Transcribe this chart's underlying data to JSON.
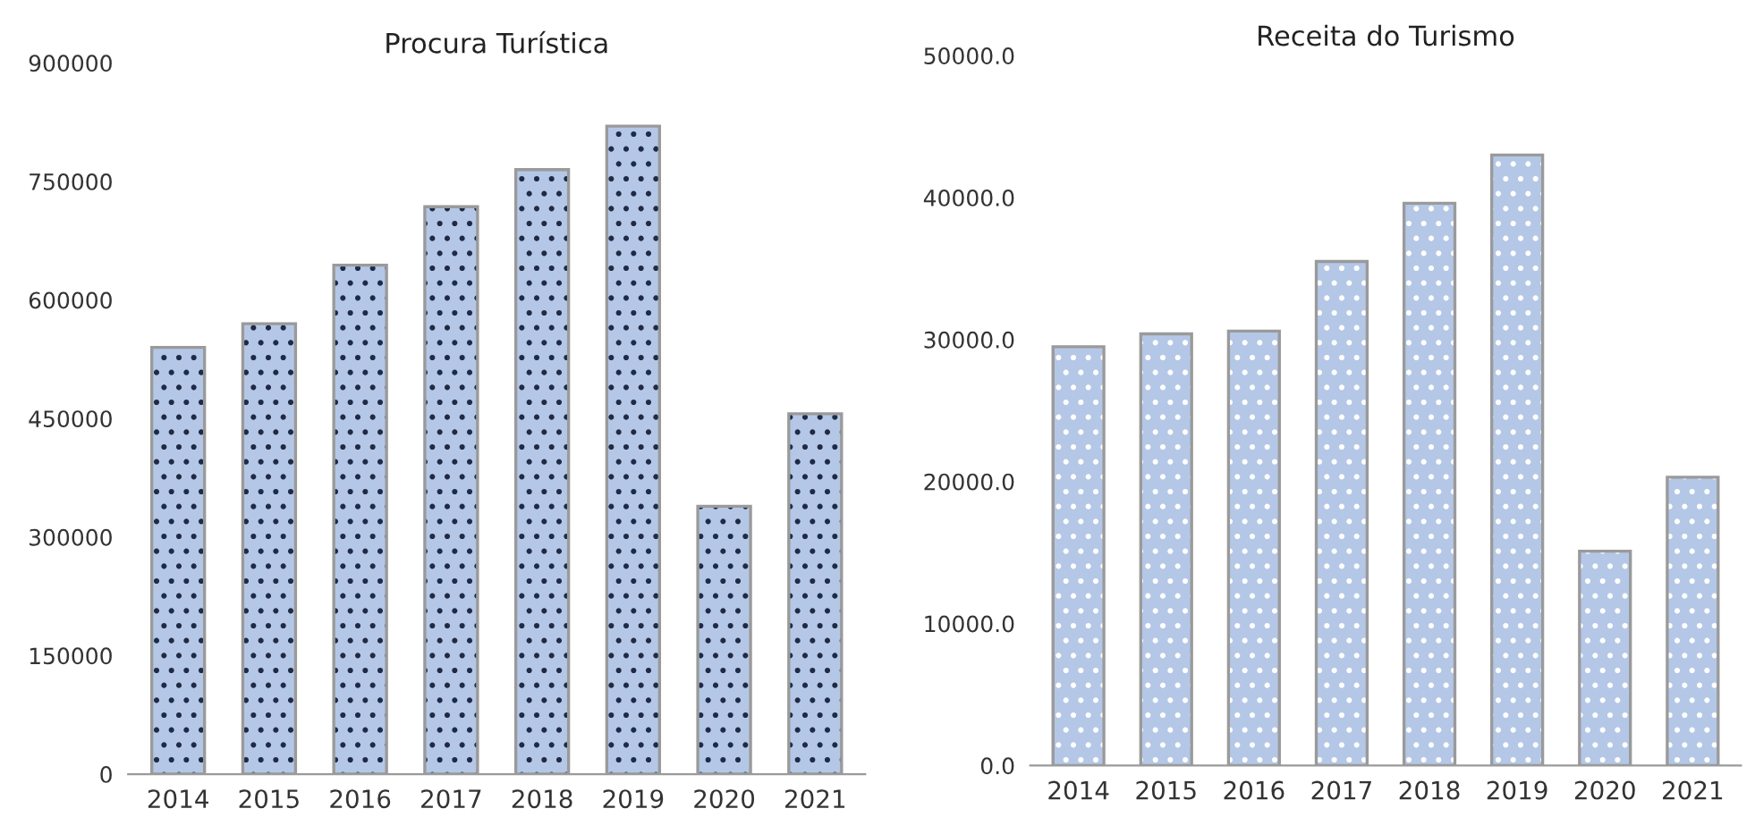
{
  "chart_data": [
    {
      "type": "bar",
      "title": "Procura Turística",
      "categories": [
        "2014",
        "2015",
        "2016",
        "2017",
        "2018",
        "2019",
        "2020",
        "2021"
      ],
      "series": [
        {
          "color": "#b4c7e7",
          "values": [
            540000,
            570000,
            644000,
            718000,
            765000,
            820000,
            339000,
            456000
          ]
        }
      ],
      "ylim": [
        0,
        900000
      ],
      "yticks": [
        0,
        150000,
        300000,
        450000,
        600000,
        750000,
        900000
      ],
      "grid": false,
      "legend": false
    },
    {
      "type": "bar",
      "title": "Receita do Turismo",
      "categories": [
        "2014",
        "2015",
        "2016",
        "2017",
        "2018",
        "2019",
        "2020",
        "2021"
      ],
      "series": [
        {
          "color": "#b4c7e7",
          "values": [
            29500,
            30400,
            30600,
            35500,
            39600,
            43000,
            15100,
            20300
          ]
        }
      ],
      "ylim": [
        0,
        50000
      ],
      "yticks": [
        {
          "value": 0,
          "label": "0.0"
        },
        {
          "value": 10000,
          "label": "10000.0"
        },
        {
          "value": 20000,
          "label": "20000.0"
        },
        {
          "value": 30000,
          "label": "30000.0"
        },
        {
          "value": 40000,
          "label": "40000.0"
        },
        {
          "value": 50000,
          "label": "50000.0"
        }
      ],
      "grid": false,
      "legend": false
    }
  ]
}
